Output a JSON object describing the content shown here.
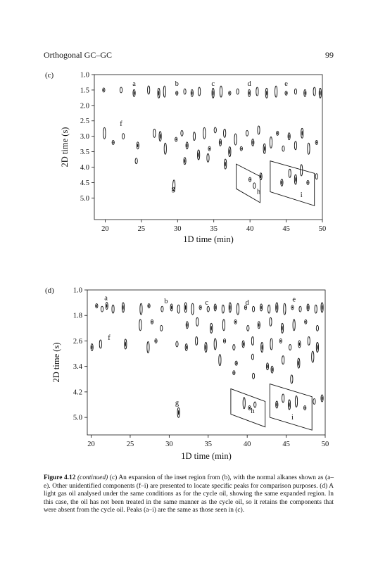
{
  "header": {
    "running_title": "Orthogonal GC–GC",
    "page_number": "99"
  },
  "chart_data": [
    {
      "type": "scatter",
      "panel_label": "(c)",
      "xlabel": "1D time (min)",
      "ylabel": "2D time (s)",
      "xlim": [
        18.5,
        50
      ],
      "ylim": [
        1.0,
        5.7
      ],
      "y_inverted": true,
      "xticks": [
        "20",
        "25",
        "30",
        "35",
        "40",
        "45",
        "50"
      ],
      "yticks": [
        "1.0",
        "1.5",
        "2.0",
        "2.5",
        "3.0",
        "3.5",
        "4.0",
        "4.5",
        "5.0"
      ],
      "x_tick_values": [
        20,
        25,
        30,
        35,
        40,
        45,
        50
      ],
      "y_tick_values": [
        1.0,
        1.5,
        2.0,
        2.5,
        3.0,
        3.5,
        4.0,
        4.5,
        5.0
      ],
      "peak_labels": [
        {
          "label": "a",
          "x": 24.0,
          "y": 1.3
        },
        {
          "label": "b",
          "x": 29.9,
          "y": 1.3
        },
        {
          "label": "c",
          "x": 34.9,
          "y": 1.3
        },
        {
          "label": "d",
          "x": 39.9,
          "y": 1.3
        },
        {
          "label": "e",
          "x": 45.0,
          "y": 1.3
        },
        {
          "label": "f",
          "x": 22.2,
          "y": 2.6
        },
        {
          "label": "g",
          "x": 29.4,
          "y": 4.7
        },
        {
          "label": "h",
          "x": 41.2,
          "y": 4.8
        },
        {
          "label": "i",
          "x": 47.1,
          "y": 4.9
        }
      ],
      "peaks": [
        {
          "x": 19.8,
          "y": 1.5
        },
        {
          "x": 22.2,
          "y": 1.5
        },
        {
          "x": 24.0,
          "y": 1.6
        },
        {
          "x": 26.0,
          "y": 1.5
        },
        {
          "x": 27.4,
          "y": 1.6
        },
        {
          "x": 28.2,
          "y": 1.55
        },
        {
          "x": 29.9,
          "y": 1.6
        },
        {
          "x": 31.0,
          "y": 1.55
        },
        {
          "x": 32.0,
          "y": 1.6
        },
        {
          "x": 33.0,
          "y": 1.55
        },
        {
          "x": 34.9,
          "y": 1.6
        },
        {
          "x": 36.0,
          "y": 1.55
        },
        {
          "x": 37.2,
          "y": 1.6
        },
        {
          "x": 38.3,
          "y": 1.55
        },
        {
          "x": 39.9,
          "y": 1.6
        },
        {
          "x": 41.0,
          "y": 1.55
        },
        {
          "x": 42.3,
          "y": 1.6
        },
        {
          "x": 43.6,
          "y": 1.55
        },
        {
          "x": 45.0,
          "y": 1.6
        },
        {
          "x": 46.3,
          "y": 1.55
        },
        {
          "x": 47.6,
          "y": 1.6
        },
        {
          "x": 48.9,
          "y": 1.55
        },
        {
          "x": 49.7,
          "y": 1.6
        },
        {
          "x": 19.9,
          "y": 2.9
        },
        {
          "x": 21.1,
          "y": 3.2
        },
        {
          "x": 22.5,
          "y": 3.0
        },
        {
          "x": 24.5,
          "y": 3.3
        },
        {
          "x": 26.8,
          "y": 2.9
        },
        {
          "x": 27.6,
          "y": 3.0
        },
        {
          "x": 28.3,
          "y": 3.4
        },
        {
          "x": 29.8,
          "y": 3.1
        },
        {
          "x": 30.6,
          "y": 2.9
        },
        {
          "x": 31.3,
          "y": 3.3
        },
        {
          "x": 32.3,
          "y": 3.0
        },
        {
          "x": 32.9,
          "y": 3.6
        },
        {
          "x": 33.7,
          "y": 2.9
        },
        {
          "x": 34.4,
          "y": 3.4
        },
        {
          "x": 35.2,
          "y": 2.8
        },
        {
          "x": 35.9,
          "y": 3.2
        },
        {
          "x": 36.5,
          "y": 2.9
        },
        {
          "x": 37.2,
          "y": 3.5
        },
        {
          "x": 38.0,
          "y": 3.1
        },
        {
          "x": 38.8,
          "y": 3.4
        },
        {
          "x": 39.6,
          "y": 2.9
        },
        {
          "x": 40.4,
          "y": 3.2
        },
        {
          "x": 41.2,
          "y": 2.8
        },
        {
          "x": 42.0,
          "y": 3.4
        },
        {
          "x": 42.9,
          "y": 3.2
        },
        {
          "x": 43.8,
          "y": 2.9
        },
        {
          "x": 44.6,
          "y": 3.4
        },
        {
          "x": 45.4,
          "y": 3.0
        },
        {
          "x": 46.3,
          "y": 3.3
        },
        {
          "x": 47.2,
          "y": 2.9
        },
        {
          "x": 48.1,
          "y": 3.4
        },
        {
          "x": 49.2,
          "y": 3.2
        },
        {
          "x": 24.3,
          "y": 3.8
        },
        {
          "x": 31.0,
          "y": 3.8
        },
        {
          "x": 34.2,
          "y": 3.7
        },
        {
          "x": 36.6,
          "y": 3.9
        },
        {
          "x": 29.5,
          "y": 4.6
        },
        {
          "x": 40.0,
          "y": 4.4
        },
        {
          "x": 40.6,
          "y": 4.6
        },
        {
          "x": 41.5,
          "y": 4.3
        },
        {
          "x": 45.5,
          "y": 4.2
        },
        {
          "x": 46.3,
          "y": 4.4
        },
        {
          "x": 47.1,
          "y": 4.1
        },
        {
          "x": 48.0,
          "y": 4.5
        },
        {
          "x": 49.2,
          "y": 4.3
        },
        {
          "x": 44.4,
          "y": 4.5
        }
      ],
      "inset_boxes": [
        {
          "corners": [
            [
              38.1,
              3.9
            ],
            [
              41.4,
              4.3
            ],
            [
              41.4,
              5.15
            ],
            [
              38.1,
              4.7
            ]
          ]
        },
        {
          "corners": [
            [
              42.8,
              3.8
            ],
            [
              48.9,
              4.2
            ],
            [
              48.9,
              5.25
            ],
            [
              42.8,
              4.8
            ]
          ]
        }
      ]
    },
    {
      "type": "scatter",
      "panel_label": "(d)",
      "xlabel": "1D time (min)",
      "ylabel": "2D time (s)",
      "xlim": [
        19.5,
        50
      ],
      "ylim": [
        1.0,
        5.55
      ],
      "y_inverted": true,
      "xticks": [
        "20",
        "25",
        "30",
        "35",
        "40",
        "45",
        "50"
      ],
      "yticks": [
        "1.0",
        "1.8",
        "2.6",
        "3.4",
        "4.2",
        "5.0"
      ],
      "x_tick_values": [
        20,
        25,
        30,
        35,
        40,
        45,
        50
      ],
      "y_tick_values": [
        1.0,
        1.8,
        2.6,
        3.4,
        4.2,
        5.0
      ],
      "peak_labels": [
        {
          "label": "a",
          "x": 21.9,
          "y": 1.25
        },
        {
          "label": "b",
          "x": 29.6,
          "y": 1.35
        },
        {
          "label": "c",
          "x": 34.8,
          "y": 1.4
        },
        {
          "label": "d",
          "x": 40.0,
          "y": 1.4
        },
        {
          "label": "e",
          "x": 46.0,
          "y": 1.3
        },
        {
          "label": "f",
          "x": 22.3,
          "y": 2.5
        },
        {
          "label": "g",
          "x": 31.0,
          "y": 4.55
        },
        {
          "label": "h",
          "x": 40.7,
          "y": 4.8
        },
        {
          "label": "i",
          "x": 45.8,
          "y": 5.0
        }
      ],
      "peaks": [
        {
          "x": 20.7,
          "y": 1.5
        },
        {
          "x": 21.4,
          "y": 1.6
        },
        {
          "x": 22.0,
          "y": 1.5
        },
        {
          "x": 22.8,
          "y": 1.6
        },
        {
          "x": 24.1,
          "y": 1.55
        },
        {
          "x": 26.4,
          "y": 1.6
        },
        {
          "x": 27.4,
          "y": 1.5
        },
        {
          "x": 29.1,
          "y": 1.6
        },
        {
          "x": 30.3,
          "y": 1.55
        },
        {
          "x": 31.2,
          "y": 1.6
        },
        {
          "x": 32.1,
          "y": 1.55
        },
        {
          "x": 33.0,
          "y": 1.6
        },
        {
          "x": 34.0,
          "y": 1.55
        },
        {
          "x": 35.0,
          "y": 1.6
        },
        {
          "x": 35.9,
          "y": 1.55
        },
        {
          "x": 36.9,
          "y": 1.6
        },
        {
          "x": 37.8,
          "y": 1.55
        },
        {
          "x": 38.8,
          "y": 1.6
        },
        {
          "x": 39.8,
          "y": 1.55
        },
        {
          "x": 40.8,
          "y": 1.6
        },
        {
          "x": 41.8,
          "y": 1.55
        },
        {
          "x": 42.8,
          "y": 1.6
        },
        {
          "x": 43.8,
          "y": 1.55
        },
        {
          "x": 44.8,
          "y": 1.6
        },
        {
          "x": 45.8,
          "y": 1.55
        },
        {
          "x": 46.8,
          "y": 1.6
        },
        {
          "x": 47.8,
          "y": 1.55
        },
        {
          "x": 48.8,
          "y": 1.6
        },
        {
          "x": 49.6,
          "y": 1.55
        },
        {
          "x": 26.3,
          "y": 2.1
        },
        {
          "x": 27.8,
          "y": 2.0
        },
        {
          "x": 29.0,
          "y": 2.2
        },
        {
          "x": 32.3,
          "y": 2.1
        },
        {
          "x": 33.6,
          "y": 2.0
        },
        {
          "x": 35.4,
          "y": 2.2
        },
        {
          "x": 37.0,
          "y": 2.1
        },
        {
          "x": 38.5,
          "y": 2.0
        },
        {
          "x": 40.1,
          "y": 2.2
        },
        {
          "x": 41.5,
          "y": 2.1
        },
        {
          "x": 43.0,
          "y": 2.0
        },
        {
          "x": 44.5,
          "y": 2.2
        },
        {
          "x": 46.0,
          "y": 2.1
        },
        {
          "x": 47.5,
          "y": 2.0
        },
        {
          "x": 49.0,
          "y": 2.2
        },
        {
          "x": 20.1,
          "y": 2.8
        },
        {
          "x": 21.2,
          "y": 2.7
        },
        {
          "x": 24.4,
          "y": 2.7
        },
        {
          "x": 27.3,
          "y": 2.8
        },
        {
          "x": 28.3,
          "y": 2.6
        },
        {
          "x": 31.0,
          "y": 2.7
        },
        {
          "x": 32.2,
          "y": 2.8
        },
        {
          "x": 33.5,
          "y": 2.6
        },
        {
          "x": 34.7,
          "y": 2.8
        },
        {
          "x": 35.9,
          "y": 2.7
        },
        {
          "x": 37.1,
          "y": 2.6
        },
        {
          "x": 38.3,
          "y": 2.8
        },
        {
          "x": 39.5,
          "y": 2.7
        },
        {
          "x": 40.7,
          "y": 2.6
        },
        {
          "x": 41.9,
          "y": 2.8
        },
        {
          "x": 43.1,
          "y": 2.7
        },
        {
          "x": 44.3,
          "y": 2.6
        },
        {
          "x": 45.5,
          "y": 2.8
        },
        {
          "x": 46.7,
          "y": 2.7
        },
        {
          "x": 47.9,
          "y": 2.6
        },
        {
          "x": 49.0,
          "y": 2.8
        },
        {
          "x": 36.5,
          "y": 3.2
        },
        {
          "x": 38.6,
          "y": 3.3
        },
        {
          "x": 40.7,
          "y": 3.1
        },
        {
          "x": 42.6,
          "y": 3.4
        },
        {
          "x": 44.6,
          "y": 3.2
        },
        {
          "x": 46.6,
          "y": 3.3
        },
        {
          "x": 48.4,
          "y": 3.1
        },
        {
          "x": 38.3,
          "y": 3.6
        },
        {
          "x": 40.8,
          "y": 3.7
        },
        {
          "x": 43.2,
          "y": 3.5
        },
        {
          "x": 45.7,
          "y": 3.8
        },
        {
          "x": 31.2,
          "y": 4.85
        },
        {
          "x": 39.6,
          "y": 4.55
        },
        {
          "x": 40.3,
          "y": 4.7
        },
        {
          "x": 41.0,
          "y": 4.6
        },
        {
          "x": 43.8,
          "y": 4.6
        },
        {
          "x": 44.6,
          "y": 4.4
        },
        {
          "x": 45.4,
          "y": 4.6
        },
        {
          "x": 46.3,
          "y": 4.5
        },
        {
          "x": 47.4,
          "y": 4.7
        },
        {
          "x": 48.6,
          "y": 4.5
        },
        {
          "x": 49.6,
          "y": 4.4
        }
      ],
      "inset_boxes": [
        {
          "corners": [
            [
              37.9,
              4.1
            ],
            [
              42.3,
              4.5
            ],
            [
              42.3,
              5.3
            ],
            [
              37.9,
              4.9
            ]
          ]
        },
        {
          "corners": [
            [
              42.9,
              3.95
            ],
            [
              48.3,
              4.35
            ],
            [
              48.3,
              5.4
            ],
            [
              42.9,
              5.0
            ]
          ]
        }
      ]
    }
  ],
  "caption": {
    "figure_label": "Figure 4.12",
    "continued": "(continued)",
    "text": "(c) An expansion of the inset region from (b), with the normal alkanes shown as (a–e). Other unidentified components (f–i) are presented to locate specific peaks for comparison purposes. (d) A light gas oil analysed under the same conditions as for the cycle oil, showing the same expanded region. In this case, the oil has not been treated in the same manner as the cycle oil, so it retains the components that were absent from the cycle oil. Peaks (a–i) are the same as those seen in (c)."
  },
  "colors": {
    "ink": "#111111",
    "paper": "#ffffff"
  }
}
